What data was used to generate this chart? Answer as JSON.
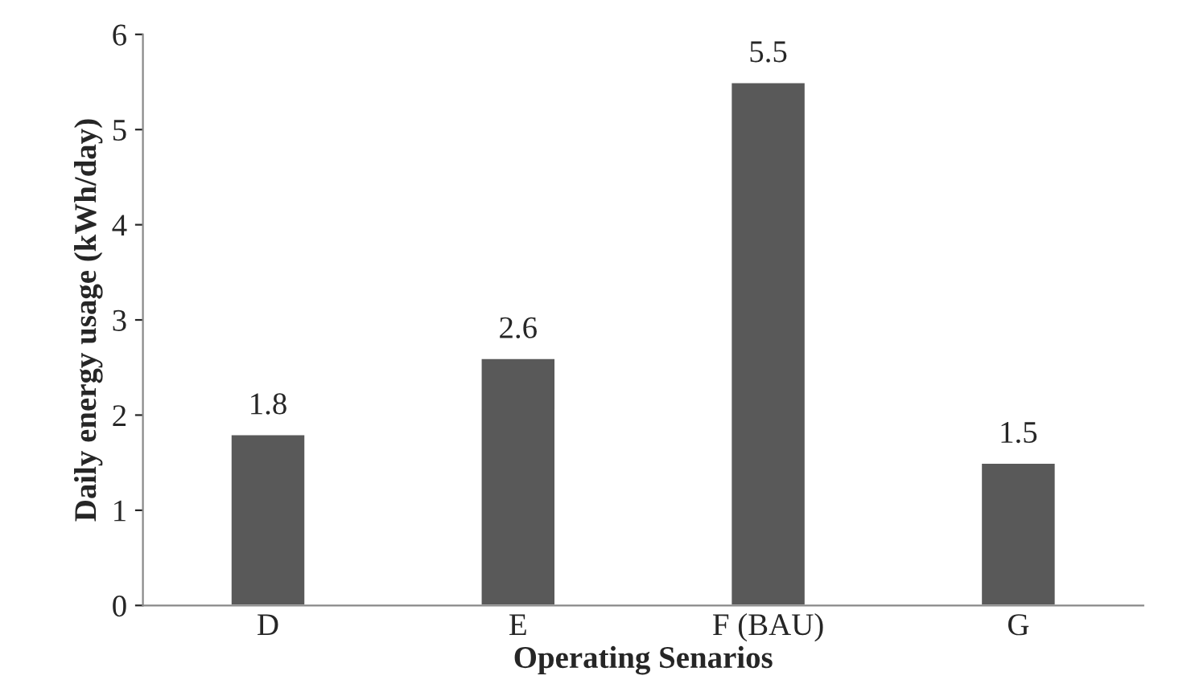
{
  "chart_data": {
    "type": "bar",
    "categories": [
      "D",
      "E",
      "F (BAU)",
      "G"
    ],
    "values": [
      1.8,
      2.6,
      5.5,
      1.5
    ],
    "color": "#595959",
    "xlabel": "Operating Senarios",
    "ylabel": "Daily energy usage (kWh/day)",
    "ylim": [
      0,
      6
    ],
    "yticks": [
      0,
      1,
      2,
      3,
      4,
      5,
      6
    ],
    "data_labels": true,
    "grid": false,
    "legend": false
  }
}
